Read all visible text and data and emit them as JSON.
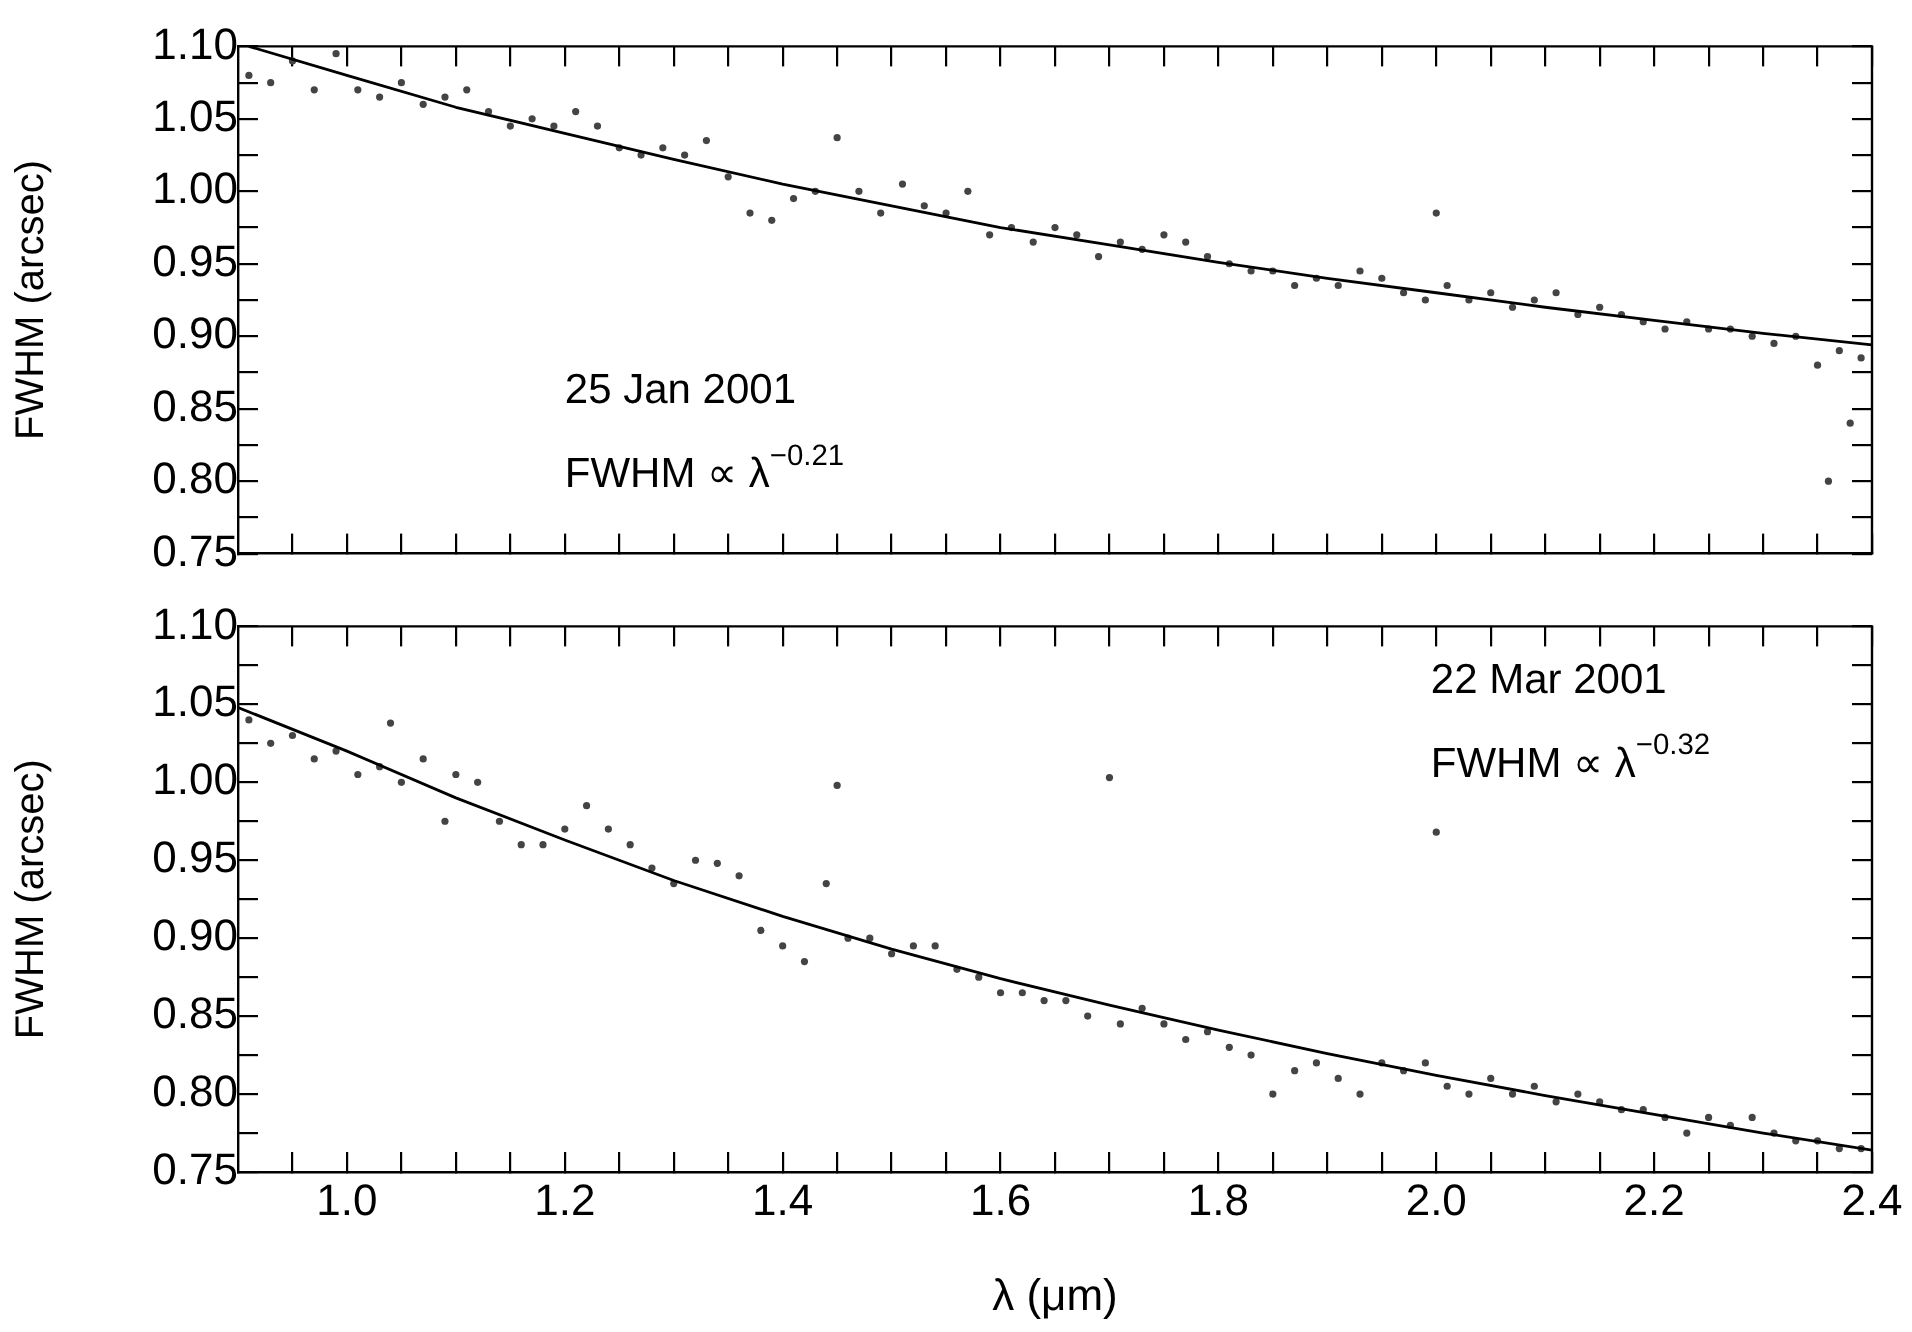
{
  "chart_data": [
    {
      "type": "scatter",
      "ylabel": "FWHM (arcsec)",
      "tick_labels": "y",
      "annotations": [
        "25 Jan 2001",
        "FWHM ∝ λ$^{−0.21}$"
      ],
      "xlim": [
        0.9,
        2.4
      ],
      "xticks": [
        {
          "value": 0.95,
          "label": null
        },
        {
          "value": 1,
          "label": null
        },
        {
          "value": 1.05,
          "label": null
        },
        {
          "value": 1.1,
          "label": null
        },
        {
          "value": 1.15,
          "label": null
        },
        {
          "value": 1.2,
          "label": null
        },
        {
          "value": 1.25,
          "label": null
        },
        {
          "value": 1.3,
          "label": null
        },
        {
          "value": 1.35,
          "label": null
        },
        {
          "value": 1.4,
          "label": null
        },
        {
          "value": 1.45,
          "label": null
        },
        {
          "value": 1.5,
          "label": null
        },
        {
          "value": 1.55,
          "label": null
        },
        {
          "value": 1.6,
          "label": null
        },
        {
          "value": 1.65,
          "label": null
        },
        {
          "value": 1.7,
          "label": null
        },
        {
          "value": 1.75,
          "label": null
        },
        {
          "value": 1.8,
          "label": null
        },
        {
          "value": 1.85,
          "label": null
        },
        {
          "value": 1.9,
          "label": null
        },
        {
          "value": 1.95,
          "label": null
        },
        {
          "value": 2,
          "label": null
        },
        {
          "value": 2.05,
          "label": null
        },
        {
          "value": 2.1,
          "label": null
        },
        {
          "value": 2.15,
          "label": null
        },
        {
          "value": 2.2,
          "label": null
        },
        {
          "value": 2.25,
          "label": null
        },
        {
          "value": 2.3,
          "label": null
        },
        {
          "value": 2.35,
          "label": null
        },
        {
          "value": 2.4,
          "label": null
        }
      ],
      "ylim": [
        0.75,
        1.1
      ],
      "yticks": [
        {
          "value": 0.75,
          "label": "0.75"
        },
        {
          "value": 0.775,
          "label": null
        },
        {
          "value": 0.8,
          "label": "0.80"
        },
        {
          "value": 0.825,
          "label": null
        },
        {
          "value": 0.85,
          "label": "0.85"
        },
        {
          "value": 0.875,
          "label": null
        },
        {
          "value": 0.9,
          "label": "0.90"
        },
        {
          "value": 0.925,
          "label": null
        },
        {
          "value": 0.95,
          "label": "0.95"
        },
        {
          "value": 0.975,
          "label": null
        },
        {
          "value": 1,
          "label": "1.00"
        },
        {
          "value": 1.025,
          "label": null
        },
        {
          "value": 1.05,
          "label": "1.05"
        },
        {
          "value": 1.075,
          "label": null
        },
        {
          "value": 1.1,
          "label": "1.10"
        }
      ],
      "series": [
        {
          "type": "scatter",
          "marker": "circle",
          "color": "#444444",
          "x": [
            0.91,
            0.93,
            0.95,
            0.97,
            0.99,
            1.01,
            1.03,
            1.05,
            1.07,
            1.09,
            1.11,
            1.13,
            1.15,
            1.17,
            1.19,
            1.21,
            1.23,
            1.25,
            1.27,
            1.29,
            1.31,
            1.33,
            1.35,
            1.37,
            1.39,
            1.41,
            1.43,
            1.45,
            1.47,
            1.49,
            1.51,
            1.53,
            1.55,
            1.57,
            1.59,
            1.61,
            1.63,
            1.65,
            1.67,
            1.69,
            1.71,
            1.73,
            1.75,
            1.77,
            1.79,
            1.81,
            1.83,
            1.85,
            1.87,
            1.89,
            1.91,
            1.93,
            1.95,
            1.97,
            1.99,
            2.0,
            2.01,
            2.03,
            2.05,
            2.07,
            2.09,
            2.11,
            2.13,
            2.15,
            2.17,
            2.19,
            2.21,
            2.23,
            2.25,
            2.27,
            2.29,
            2.31,
            2.33,
            2.35,
            2.36,
            2.37,
            2.38,
            2.39
          ],
          "values": [
            1.08,
            1.075,
            1.09,
            1.07,
            1.095,
            1.07,
            1.065,
            1.075,
            1.06,
            1.065,
            1.07,
            1.055,
            1.045,
            1.05,
            1.045,
            1.055,
            1.045,
            1.03,
            1.025,
            1.03,
            1.025,
            1.035,
            1.01,
            0.985,
            0.98,
            0.995,
            1.0,
            1.037,
            1.0,
            0.985,
            1.005,
            0.99,
            0.985,
            1.0,
            0.97,
            0.975,
            0.965,
            0.975,
            0.97,
            0.955,
            0.965,
            0.96,
            0.97,
            0.965,
            0.955,
            0.95,
            0.945,
            0.945,
            0.935,
            0.94,
            0.935,
            0.945,
            0.94,
            0.93,
            0.925,
            0.985,
            0.935,
            0.925,
            0.93,
            0.92,
            0.925,
            0.93,
            0.915,
            0.92,
            0.915,
            0.91,
            0.905,
            0.91,
            0.905,
            0.905,
            0.9,
            0.895,
            0.9,
            0.88,
            0.8,
            0.89,
            0.84,
            0.885
          ]
        },
        {
          "type": "line",
          "marker": "none",
          "color": "#000000",
          "x": [
            0.91,
            1.0,
            1.1,
            1.2,
            1.3,
            1.4,
            1.5,
            1.6,
            1.7,
            1.8,
            1.9,
            2.0,
            2.1,
            2.2,
            2.3,
            2.4
          ],
          "values": [
            1.1,
            1.08,
            1.058,
            1.04,
            1.022,
            1.005,
            0.99,
            0.975,
            0.963,
            0.951,
            0.94,
            0.93,
            0.92,
            0.911,
            0.902,
            0.894
          ]
        }
      ]
    },
    {
      "type": "scatter",
      "ylabel": "FWHM (arcsec)",
      "xlabel": "λ (μm)",
      "annotations": [
        "22 Mar 2001",
        "FWHM ∝ λ$^{−0.32}$"
      ],
      "xlim": [
        0.9,
        2.4
      ],
      "xticks": [
        {
          "value": 0.95,
          "label": null
        },
        {
          "value": 1,
          "label": "1.0"
        },
        {
          "value": 1.05,
          "label": null
        },
        {
          "value": 1.1,
          "label": null
        },
        {
          "value": 1.15,
          "label": null
        },
        {
          "value": 1.2,
          "label": "1.2"
        },
        {
          "value": 1.25,
          "label": null
        },
        {
          "value": 1.3,
          "label": null
        },
        {
          "value": 1.35,
          "label": null
        },
        {
          "value": 1.4,
          "label": "1.4"
        },
        {
          "value": 1.45,
          "label": null
        },
        {
          "value": 1.5,
          "label": null
        },
        {
          "value": 1.55,
          "label": null
        },
        {
          "value": 1.6,
          "label": "1.6"
        },
        {
          "value": 1.65,
          "label": null
        },
        {
          "value": 1.7,
          "label": null
        },
        {
          "value": 1.75,
          "label": null
        },
        {
          "value": 1.8,
          "label": "1.8"
        },
        {
          "value": 1.85,
          "label": null
        },
        {
          "value": 1.9,
          "label": null
        },
        {
          "value": 1.95,
          "label": null
        },
        {
          "value": 2,
          "label": "2.0"
        },
        {
          "value": 2.05,
          "label": null
        },
        {
          "value": 2.1,
          "label": null
        },
        {
          "value": 2.15,
          "label": null
        },
        {
          "value": 2.2,
          "label": "2.2"
        },
        {
          "value": 2.25,
          "label": null
        },
        {
          "value": 2.3,
          "label": null
        },
        {
          "value": 2.35,
          "label": null
        },
        {
          "value": 2.4,
          "label": "2.4"
        }
      ],
      "ylim": [
        0.75,
        1.1
      ],
      "yticks": [
        {
          "value": 0.75,
          "label": "0.75"
        },
        {
          "value": 0.775,
          "label": null
        },
        {
          "value": 0.8,
          "label": "0.80"
        },
        {
          "value": 0.825,
          "label": null
        },
        {
          "value": 0.85,
          "label": "0.85"
        },
        {
          "value": 0.875,
          "label": null
        },
        {
          "value": 0.9,
          "label": "0.90"
        },
        {
          "value": 0.925,
          "label": null
        },
        {
          "value": 0.95,
          "label": "0.95"
        },
        {
          "value": 0.975,
          "label": null
        },
        {
          "value": 1,
          "label": "1.00"
        },
        {
          "value": 1.025,
          "label": null
        },
        {
          "value": 1.05,
          "label": "1.05"
        },
        {
          "value": 1.075,
          "label": null
        },
        {
          "value": 1.1,
          "label": "1.10"
        }
      ],
      "series": [
        {
          "type": "scatter",
          "marker": "circle",
          "color": "#444444",
          "x": [
            0.91,
            0.93,
            0.95,
            0.97,
            0.99,
            1.01,
            1.03,
            1.04,
            1.05,
            1.07,
            1.09,
            1.1,
            1.12,
            1.14,
            1.16,
            1.18,
            1.2,
            1.22,
            1.24,
            1.26,
            1.28,
            1.3,
            1.32,
            1.34,
            1.36,
            1.38,
            1.4,
            1.42,
            1.44,
            1.45,
            1.46,
            1.48,
            1.5,
            1.52,
            1.54,
            1.56,
            1.58,
            1.6,
            1.62,
            1.64,
            1.66,
            1.68,
            1.7,
            1.71,
            1.73,
            1.75,
            1.77,
            1.79,
            1.81,
            1.83,
            1.85,
            1.87,
            1.89,
            1.91,
            1.93,
            1.95,
            1.97,
            1.99,
            2.0,
            2.01,
            2.03,
            2.05,
            2.07,
            2.09,
            2.11,
            2.13,
            2.15,
            2.17,
            2.19,
            2.21,
            2.23,
            2.25,
            2.27,
            2.29,
            2.31,
            2.33,
            2.35,
            2.37,
            2.39
          ],
          "values": [
            1.04,
            1.025,
            1.03,
            1.015,
            1.02,
            1.005,
            1.01,
            1.038,
            1.0,
            1.015,
            0.975,
            1.005,
            1.0,
            0.975,
            0.96,
            0.96,
            0.97,
            0.985,
            0.97,
            0.96,
            0.945,
            0.935,
            0.95,
            0.948,
            0.94,
            0.905,
            0.895,
            0.885,
            0.935,
            0.998,
            0.9,
            0.9,
            0.89,
            0.895,
            0.895,
            0.88,
            0.875,
            0.865,
            0.865,
            0.86,
            0.86,
            0.85,
            1.003,
            0.845,
            0.855,
            0.845,
            0.835,
            0.84,
            0.83,
            0.825,
            0.8,
            0.815,
            0.82,
            0.81,
            0.8,
            0.82,
            0.815,
            0.82,
            0.968,
            0.805,
            0.8,
            0.81,
            0.8,
            0.805,
            0.795,
            0.8,
            0.795,
            0.79,
            0.79,
            0.785,
            0.775,
            0.785,
            0.78,
            0.785,
            0.775,
            0.77,
            0.77,
            0.765,
            0.765
          ]
        },
        {
          "type": "line",
          "marker": "none",
          "color": "#000000",
          "x": [
            0.9,
            1.0,
            1.1,
            1.2,
            1.3,
            1.4,
            1.5,
            1.6,
            1.7,
            1.8,
            1.9,
            2.0,
            2.1,
            2.2,
            2.3,
            2.4
          ],
          "values": [
            1.048,
            1.02,
            0.99,
            0.963,
            0.937,
            0.914,
            0.893,
            0.874,
            0.857,
            0.841,
            0.826,
            0.812,
            0.799,
            0.787,
            0.775,
            0.764
          ]
        }
      ]
    }
  ]
}
